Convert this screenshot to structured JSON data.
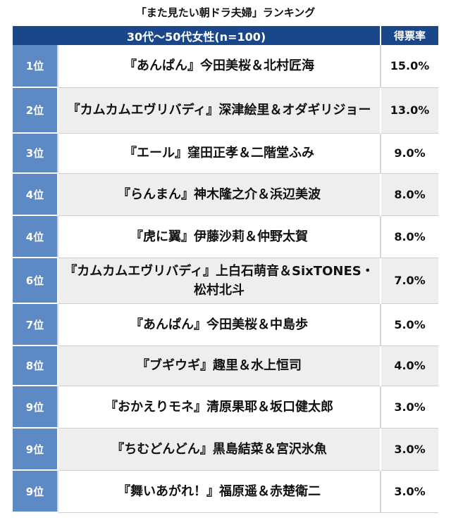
{
  "title": "「また見たい朝ドラ夫婦」ランキング",
  "chart_data": {
    "type": "table",
    "title": "「また見たい朝ドラ夫婦」ランキング",
    "header": {
      "group": "30代〜50代女性(n=100)",
      "share": "得票率"
    },
    "rows": [
      {
        "rank": "1位",
        "name": "『あんぱん』今田美桜＆北村匠海",
        "share": "15.0%",
        "value": 15.0
      },
      {
        "rank": "2位",
        "name": "『カムカムエヴリバディ』深津絵里＆オダギリジョー",
        "share": "13.0%",
        "value": 13.0
      },
      {
        "rank": "3位",
        "name": "『エール』窪田正孝＆二階堂ふみ",
        "share": "9.0%",
        "value": 9.0
      },
      {
        "rank": "4位",
        "name": "『らんまん』神木隆之介＆浜辺美波",
        "share": "8.0%",
        "value": 8.0
      },
      {
        "rank": "4位",
        "name": "『虎に翼』伊藤沙莉＆仲野太賀",
        "share": "8.0%",
        "value": 8.0
      },
      {
        "rank": "6位",
        "name": "『カムカムエヴリバディ』上白石萌音＆SixTONES・松村北斗",
        "share": "7.0%",
        "value": 7.0
      },
      {
        "rank": "7位",
        "name": "『あんぱん』今田美桜＆中島歩",
        "share": "5.0%",
        "value": 5.0
      },
      {
        "rank": "8位",
        "name": "『ブギウギ』趣里＆水上恒司",
        "share": "4.0%",
        "value": 4.0
      },
      {
        "rank": "9位",
        "name": "『おかえりモネ』清原果耶＆坂口健太郎",
        "share": "3.0%",
        "value": 3.0
      },
      {
        "rank": "9位",
        "name": "『ちむどんどん』黒島結菜＆宮沢氷魚",
        "share": "3.0%",
        "value": 3.0
      },
      {
        "rank": "9位",
        "name": "『舞いあがれ！』福原遥＆赤楚衛二",
        "share": "3.0%",
        "value": 3.0
      }
    ]
  },
  "colors": {
    "header_background": "#1a468a",
    "rank_background": "#5d8ac4",
    "row_alt_background": "#eeeeee",
    "row_background": "#ffffff"
  }
}
